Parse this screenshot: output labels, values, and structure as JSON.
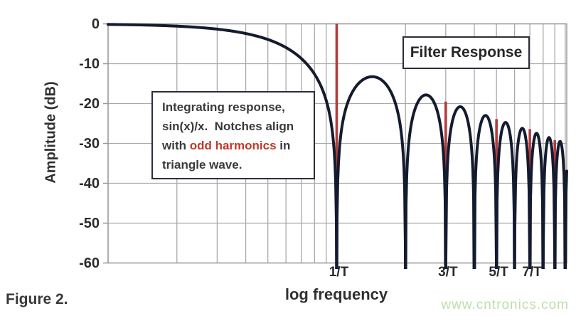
{
  "figure": {
    "label": "Figure 2."
  },
  "watermark": {
    "text": "www.cntronics.com",
    "color": "#bcdfaa"
  },
  "chart_data": {
    "type": "line",
    "title": "Filter Response",
    "xlabel": "log frequency",
    "ylabel": "Amplitude (dB)",
    "x_scale": "log",
    "x_range_over_T": [
      0.1,
      10.15
    ],
    "ylim_db": [
      -60,
      0
    ],
    "y_ticks_db": [
      0,
      -10,
      -20,
      -30,
      -40,
      -50,
      -60
    ],
    "x_ticks": [
      {
        "freq": 1,
        "label": "1/T"
      },
      {
        "freq": 3,
        "label": "3/T"
      },
      {
        "freq": 5,
        "label": "5/T"
      },
      {
        "freq": 7,
        "label": "7/T"
      }
    ],
    "grid": "on",
    "grid_x_freqs": [
      0.1,
      0.2,
      0.3,
      0.4,
      0.5,
      0.6,
      0.7,
      0.8,
      0.9,
      1,
      2,
      3,
      4,
      5,
      6,
      7,
      8,
      9,
      10
    ],
    "curve": {
      "name": "integrating sin(x)/x filter response",
      "formula_db": "20*log10(|sin(pi*f*T)/(pi*f*T)|)",
      "color": "#141b2f",
      "stroke_width": 4,
      "notches_at_freq": [
        1,
        2,
        3,
        4,
        5,
        6,
        7,
        8,
        9,
        10
      ],
      "sidelobe_peaks_db": [
        -13.3,
        -17.8,
        -20.8,
        -23.0,
        -24.7,
        -26.2,
        -27.4,
        -28.5,
        -29.5
      ]
    },
    "odd_harmonic_markers": {
      "color": "#b23c3c",
      "width": 3.6,
      "items": [
        {
          "freq": 1,
          "top_db": 0
        },
        {
          "freq": 3,
          "top_db": -19.5
        },
        {
          "freq": 5,
          "top_db": -23.9
        },
        {
          "freq": 7,
          "top_db": -26.4
        },
        {
          "freq": 9,
          "top_db": -29.2
        }
      ]
    },
    "annotation_box": {
      "line1": "Integrating response,",
      "line2": "sin(x)/x.  Notches align",
      "line3a": "with ",
      "line3b": "odd harmonics",
      "line3c": " in",
      "line4": "triangle wave.",
      "highlight_color": "#c0392b"
    },
    "colors": {
      "grid": "#a9a9a9",
      "frame": "#989898",
      "text": "#303030"
    }
  }
}
